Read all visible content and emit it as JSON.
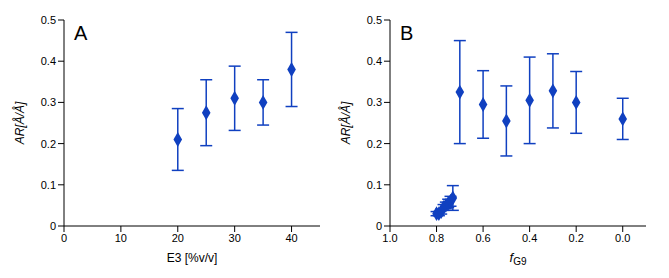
{
  "chart_data": [
    {
      "type": "scatter",
      "title": "A",
      "x_label": "E3 [%v/v]",
      "y_label": "AR[Å/Å]",
      "x": [
        20,
        25,
        30,
        35,
        40
      ],
      "values": [
        0.21,
        0.275,
        0.31,
        0.3,
        0.38
      ],
      "error": [
        0.075,
        0.08,
        0.078,
        0.055,
        0.09
      ],
      "color": "#1040c0",
      "marker": "diamond",
      "xlim": [
        0,
        45
      ],
      "xticks": [
        0,
        10,
        20,
        30,
        40
      ],
      "ylim": [
        0,
        0.5
      ],
      "yticks": [
        0,
        0.1,
        0.2,
        0.3,
        0.4,
        0.5
      ]
    },
    {
      "type": "scatter",
      "title": "B",
      "x_label": "fG9",
      "y_label": "AR[Å/Å]",
      "x": [
        0.8,
        0.79,
        0.78,
        0.77,
        0.76,
        0.75,
        0.74,
        0.73,
        0.7,
        0.6,
        0.5,
        0.4,
        0.3,
        0.2,
        0.0
      ],
      "values": [
        0.03,
        0.03,
        0.035,
        0.045,
        0.05,
        0.055,
        0.06,
        0.068,
        0.325,
        0.295,
        0.255,
        0.305,
        0.328,
        0.3,
        0.26
      ],
      "error": [
        0.005,
        0.005,
        0.006,
        0.007,
        0.008,
        0.01,
        0.012,
        0.03,
        0.125,
        0.082,
        0.085,
        0.105,
        0.09,
        0.075,
        0.05
      ],
      "color": "#1040c0",
      "marker": "diamond",
      "xlim": [
        1.0,
        -0.1
      ],
      "xticks": [
        {
          "value": 1.0,
          "label": "1.0"
        },
        0.8,
        0.6,
        0.4,
        0.2,
        {
          "value": 0,
          "label": "0.0"
        }
      ],
      "ylim": [
        0,
        0.5
      ],
      "yticks": [
        0,
        0.1,
        0.2,
        0.3,
        0.4,
        0.5
      ]
    }
  ]
}
